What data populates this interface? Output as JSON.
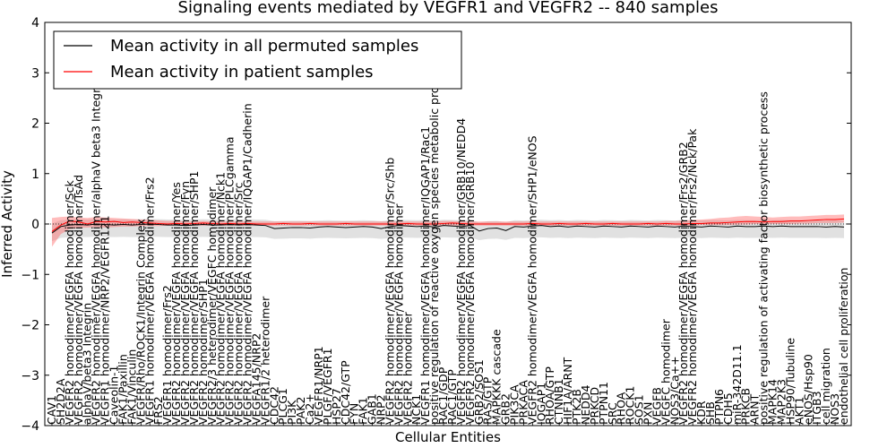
{
  "chart_data": {
    "type": "line",
    "title": "Signaling events mediated by VEGFR1 and VEGFR2 -- 840 samples",
    "xlabel": "Cellular Entities",
    "ylabel": "Inferred Activity",
    "ylim": [
      -4,
      4
    ],
    "yticks": [
      -4,
      -3,
      -2,
      -1,
      0,
      1,
      2,
      3,
      4
    ],
    "legend": {
      "placement": "top-left",
      "entries": [
        {
          "label": "Mean activity in all permuted samples",
          "color": "#000000"
        },
        {
          "label": "Mean activity in patient samples",
          "color": "#ff0000"
        }
      ]
    },
    "categories": [
      "CAV1",
      "SH2D2A",
      "VEGFR2 homodimer/VEGFA homodimer/Sck",
      "VEGFR2 homodimer/VEGFA homodimer/TsAd",
      "alphaV/beta3 Integrin",
      "VEGFR2 homodimer/VEGFA homodimer/alphaV beta3 Integrin",
      "VEGFR1 homodimer/NRP2/VEGFR121",
      "Caveolin-1",
      "FAK1/Paxillin",
      "FAK1/Vinculin",
      "VEGFR/Rho/ROCK1/Integrin Complex",
      "VEGFR1 homodimer/VEGFA homodimer/Frs2",
      "FRS2",
      "VEGFR1 homodimer/Frs2",
      "VEGFR2 homodimer/VEGFA homodimer/Yes",
      "VEGFR2 homodimer/VEGFA homodimer/Fyn",
      "VEGFR2 homodimer/VEGFA homodimer/SHP1",
      "VEGFR2 homodimer/SHP1",
      "VEGFR2/3 heterodimer/VEGFC homodimer",
      "VEGFR2 homodimer/VEGFA homodimer/Nck1",
      "VEGFR2 homodimer/VEGFA homodimer/PLCgamma",
      "VEGFR2 homodimer/VEGFA homodimer/Src",
      "VEGFR2 homodimer/VEGFA homodimer/IQGAP1/Cadherin",
      "VEGFA145/NRP2",
      "VEGFR1/2 heterodimer",
      "CDC42",
      "PLCG1",
      "PI3K",
      "PAK2",
      "Ca2+",
      "VEGFR1/NRP1",
      "PLGF/VEGFR1",
      "HSP27",
      "CDC42/GTP",
      "FYN",
      "FAK1",
      "GAB1",
      "NRP2",
      "VEGFR2 homodimer/VEGFA homodimer/Src/Shb",
      "VEGFR2 homodimer/VEGFA homodimer",
      "VEGFR2 homodimer",
      "NCK1",
      "VEGFR1 homodimer/VEGFA homodimer/IQGAP1/Rac1",
      "positive regulation of reactive oxygen species metabolic process",
      "RAC1/GDP",
      "RAC1/GTP",
      "VEGFR2 homodimer/VEGFA homodimer/GRB10/NEDD4",
      "VEGFR2 homodimer/VEGFA homodimer/GRB10",
      "GRB2/SOS1",
      "RAS/GTP",
      "MAPKKK cascade",
      "GRB2",
      "PIK3CA",
      "PRKACA",
      "VEGFR2 homodimer/VEGFA homodimer/SHP1/eNOS",
      "IQGAP1",
      "RHOA/GTP",
      "CTNNB1",
      "HIF1A/ARNT",
      "PTK2B",
      "NEDD4",
      "PRKCD",
      "PTPN11",
      "SRC",
      "RHOA",
      "ROCK1",
      "SOS1",
      "PXN",
      "VEGFB",
      "VEGFC homodimer",
      "NOS3/Ca++",
      "VEGFR2 homodimer/VEGFA homodimer/Frs2/GRB2",
      "VEGFR2 homodimer/VEGFA homodimer/Frs2/Nck/Pak",
      "KDR",
      "SHB",
      "PTPN6",
      "CDH5",
      "miR-342D11.1",
      "PRKCB",
      "ARNT",
      "positive regulation of activating factor biosynthetic process",
      "MAPK14",
      "MAP2K3",
      "HSP90/Tubuline",
      "AKT1",
      "eNOS/Hsp90",
      "ITGB3",
      "cell migration",
      "NOS3",
      "endothelial cell proliferation"
    ],
    "series": [
      {
        "name": "Mean activity in all permuted samples",
        "color": "#000000",
        "values": [
          -0.18,
          -0.05,
          -0.02,
          -0.01,
          -0.02,
          0.0,
          -0.01,
          -0.02,
          -0.01,
          -0.02,
          -0.01,
          0.0,
          -0.01,
          -0.02,
          -0.02,
          -0.03,
          -0.02,
          -0.01,
          -0.02,
          -0.02,
          -0.01,
          -0.02,
          -0.01,
          -0.02,
          -0.03,
          -0.09,
          -0.08,
          -0.07,
          -0.07,
          -0.08,
          -0.06,
          -0.05,
          -0.06,
          -0.07,
          -0.06,
          -0.05,
          -0.06,
          -0.09,
          -0.05,
          -0.03,
          -0.04,
          -0.05,
          -0.04,
          -0.06,
          -0.03,
          -0.04,
          -0.05,
          -0.03,
          -0.14,
          -0.09,
          -0.08,
          -0.13,
          -0.05,
          -0.06,
          -0.04,
          -0.03,
          -0.05,
          -0.04,
          -0.06,
          -0.04,
          -0.05,
          -0.06,
          -0.04,
          -0.05,
          -0.06,
          -0.04,
          -0.05,
          -0.06,
          -0.04,
          -0.05,
          -0.06,
          -0.04,
          -0.05,
          -0.06,
          -0.04,
          -0.05,
          -0.06,
          -0.04,
          -0.05,
          -0.05,
          -0.04,
          -0.05,
          -0.04,
          -0.05,
          -0.05,
          -0.05,
          -0.05,
          -0.06,
          -0.05,
          -0.06
        ]
      },
      {
        "name": "Mean activity in patient samples",
        "color": "#ff0000",
        "values": [
          -0.15,
          -0.02,
          0.06,
          0.04,
          0.0,
          0.05,
          0.04,
          0.05,
          0.03,
          0.04,
          0.03,
          0.02,
          0.01,
          0.0,
          0.01,
          0.0,
          0.01,
          0.02,
          0.01,
          0.0,
          0.01,
          0.0,
          0.01,
          0.0,
          0.0,
          0.0,
          0.01,
          0.0,
          0.0,
          0.01,
          0.0,
          0.0,
          0.0,
          0.01,
          0.0,
          0.0,
          0.0,
          0.0,
          0.0,
          0.0,
          0.01,
          0.0,
          0.0,
          0.0,
          0.01,
          0.02,
          0.01,
          0.0,
          0.0,
          0.0,
          0.0,
          0.0,
          0.0,
          0.0,
          0.01,
          0.0,
          0.0,
          0.01,
          0.0,
          0.0,
          0.01,
          0.0,
          0.0,
          0.01,
          0.0,
          0.0,
          0.0,
          0.01,
          0.0,
          0.01,
          0.0,
          0.0,
          0.01,
          0.01,
          0.02,
          0.02,
          0.03,
          0.04,
          0.05,
          0.05,
          0.04,
          0.05,
          0.05,
          0.06,
          0.06,
          0.07,
          0.08,
          0.09,
          0.09,
          0.1
        ]
      }
    ],
    "band_permuted": {
      "lower": -0.25,
      "upper": 0.1
    },
    "band_patient": {
      "lower": [
        -0.45,
        -0.2,
        -0.1,
        -0.08,
        -0.07,
        -0.06,
        -0.07,
        -0.06,
        -0.05,
        -0.05,
        -0.04,
        -0.04,
        -0.04,
        -0.03,
        -0.03,
        -0.03,
        -0.03,
        -0.03,
        -0.03,
        -0.03,
        -0.03,
        -0.03,
        -0.03,
        -0.03,
        -0.03,
        -0.03,
        -0.03,
        -0.03,
        -0.03,
        -0.03,
        -0.03,
        -0.03,
        -0.03,
        -0.03,
        -0.03,
        -0.03,
        -0.03,
        -0.03,
        -0.03,
        -0.03,
        -0.03,
        -0.03,
        -0.03,
        -0.03,
        -0.03,
        -0.03,
        -0.03,
        -0.03,
        -0.03,
        -0.03,
        -0.03,
        -0.03,
        -0.03,
        -0.03,
        -0.03,
        -0.03,
        -0.03,
        -0.03,
        -0.03,
        -0.03,
        -0.03,
        -0.03,
        -0.03,
        -0.03,
        -0.03,
        -0.03,
        -0.03,
        -0.03,
        -0.03,
        -0.03,
        -0.03,
        -0.03,
        -0.03,
        -0.02,
        -0.02,
        -0.02,
        -0.02,
        -0.01,
        -0.01,
        0.0,
        0.0,
        0.0,
        0.0,
        0.0,
        0.01,
        0.01,
        0.02,
        0.02,
        0.02,
        0.03
      ],
      "upper": [
        0.12,
        0.14,
        0.15,
        0.13,
        0.12,
        0.14,
        0.13,
        0.12,
        0.11,
        0.1,
        0.09,
        0.08,
        0.07,
        0.06,
        0.06,
        0.05,
        0.05,
        0.06,
        0.05,
        0.05,
        0.05,
        0.05,
        0.05,
        0.05,
        0.05,
        0.05,
        0.05,
        0.05,
        0.05,
        0.05,
        0.05,
        0.05,
        0.05,
        0.05,
        0.05,
        0.05,
        0.05,
        0.05,
        0.05,
        0.05,
        0.05,
        0.05,
        0.05,
        0.05,
        0.06,
        0.06,
        0.05,
        0.05,
        0.05,
        0.05,
        0.05,
        0.05,
        0.05,
        0.05,
        0.05,
        0.05,
        0.05,
        0.05,
        0.05,
        0.05,
        0.05,
        0.05,
        0.05,
        0.05,
        0.05,
        0.05,
        0.05,
        0.05,
        0.05,
        0.06,
        0.06,
        0.07,
        0.08,
        0.09,
        0.1,
        0.12,
        0.13,
        0.15,
        0.16,
        0.15,
        0.14,
        0.13,
        0.14,
        0.15,
        0.15,
        0.16,
        0.17,
        0.18,
        0.18,
        0.19
      ]
    }
  }
}
